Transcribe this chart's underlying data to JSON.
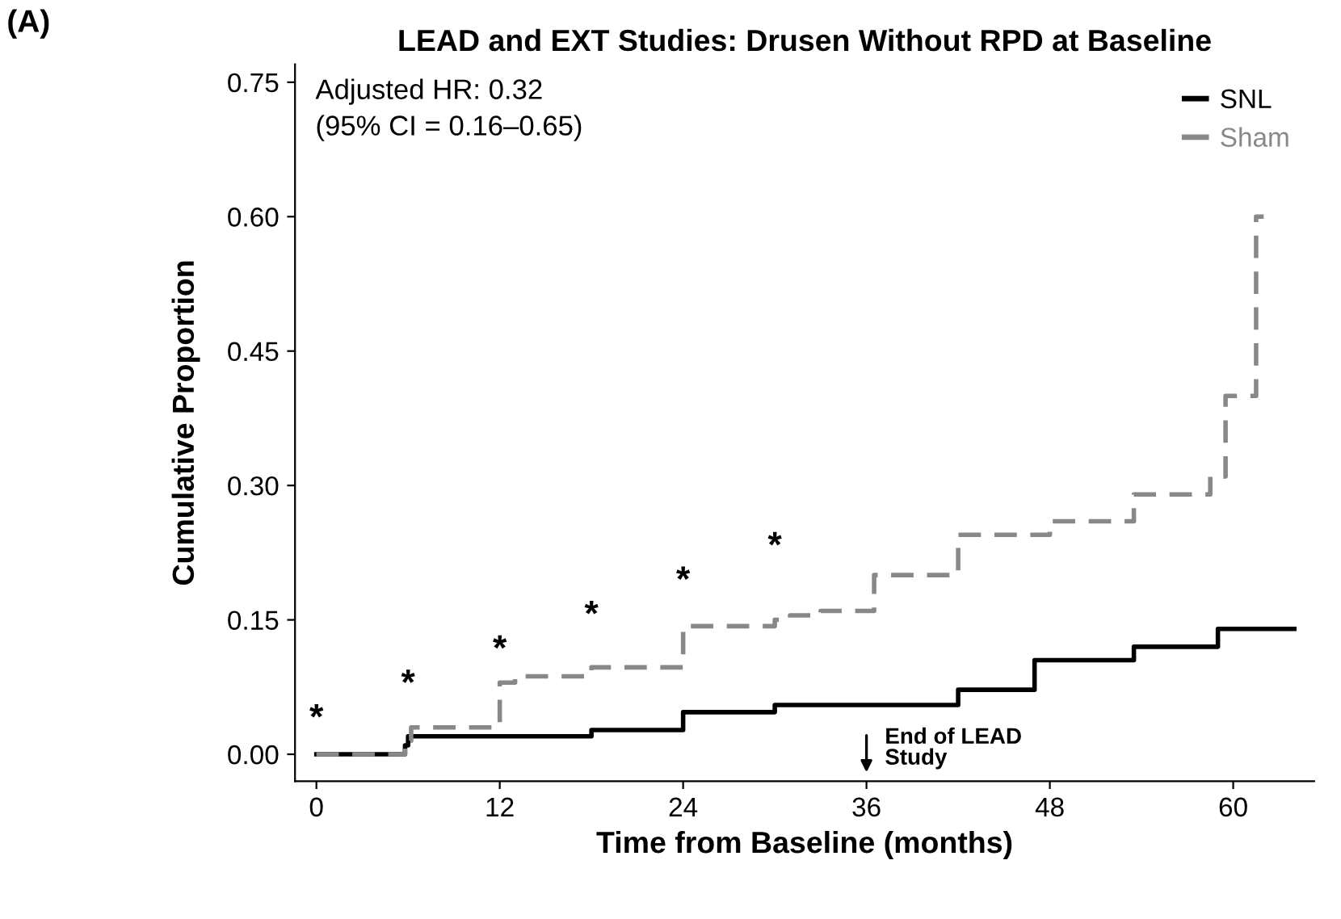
{
  "chart_data": {
    "type": "step",
    "title": "LEAD and EXT Studies: Drusen Without RPD at Baseline",
    "xlabel": "Time from Baseline (months)",
    "ylabel": "Cumulative Proportion",
    "series": [
      {
        "name": "SNL",
        "color": "#000000",
        "line_style": "solid",
        "x": [
          0,
          5.8,
          6,
          18,
          24,
          30,
          42,
          47,
          53.5,
          59,
          64
        ],
        "values": [
          0,
          0.01,
          0.02,
          0.027,
          0.047,
          0.055,
          0.072,
          0.105,
          0.12,
          0.14,
          0.14
        ]
      },
      {
        "name": "Sham",
        "color": "#888888",
        "line_style": "dashed",
        "x": [
          0,
          5.8,
          6.2,
          12,
          13,
          18,
          24,
          30,
          31,
          33,
          36.5,
          42,
          48,
          53.5,
          58.5,
          59.5,
          61.5,
          62
        ],
        "values": [
          0,
          0.015,
          0.03,
          0.08,
          0.087,
          0.097,
          0.143,
          0.15,
          0.155,
          0.16,
          0.2,
          0.245,
          0.26,
          0.29,
          0.31,
          0.4,
          0.6,
          0.6
        ]
      }
    ],
    "xlim": [
      -1.4,
      65.3
    ],
    "ylim": [
      -0.03,
      0.77
    ],
    "xticks": [
      0,
      12,
      24,
      36,
      48,
      60
    ],
    "yticks": [
      {
        "value": 0,
        "label": "0.00"
      },
      {
        "value": 0.15,
        "label": "0.15"
      },
      {
        "value": 0.3,
        "label": "0.30"
      },
      {
        "value": 0.45,
        "label": "0.45"
      },
      {
        "value": 0.6,
        "label": "0.60"
      },
      {
        "value": 0.75,
        "label": "0.75"
      }
    ],
    "grid": false,
    "legend": "top right",
    "marker": "none",
    "annotations": [
      "(A)",
      "Adjusted HR: 0.32\n(95% CI = 0.16–0.65)",
      "*",
      "*",
      "*",
      "*",
      "*",
      "*",
      "End of LEAD\nStudy"
    ]
  }
}
